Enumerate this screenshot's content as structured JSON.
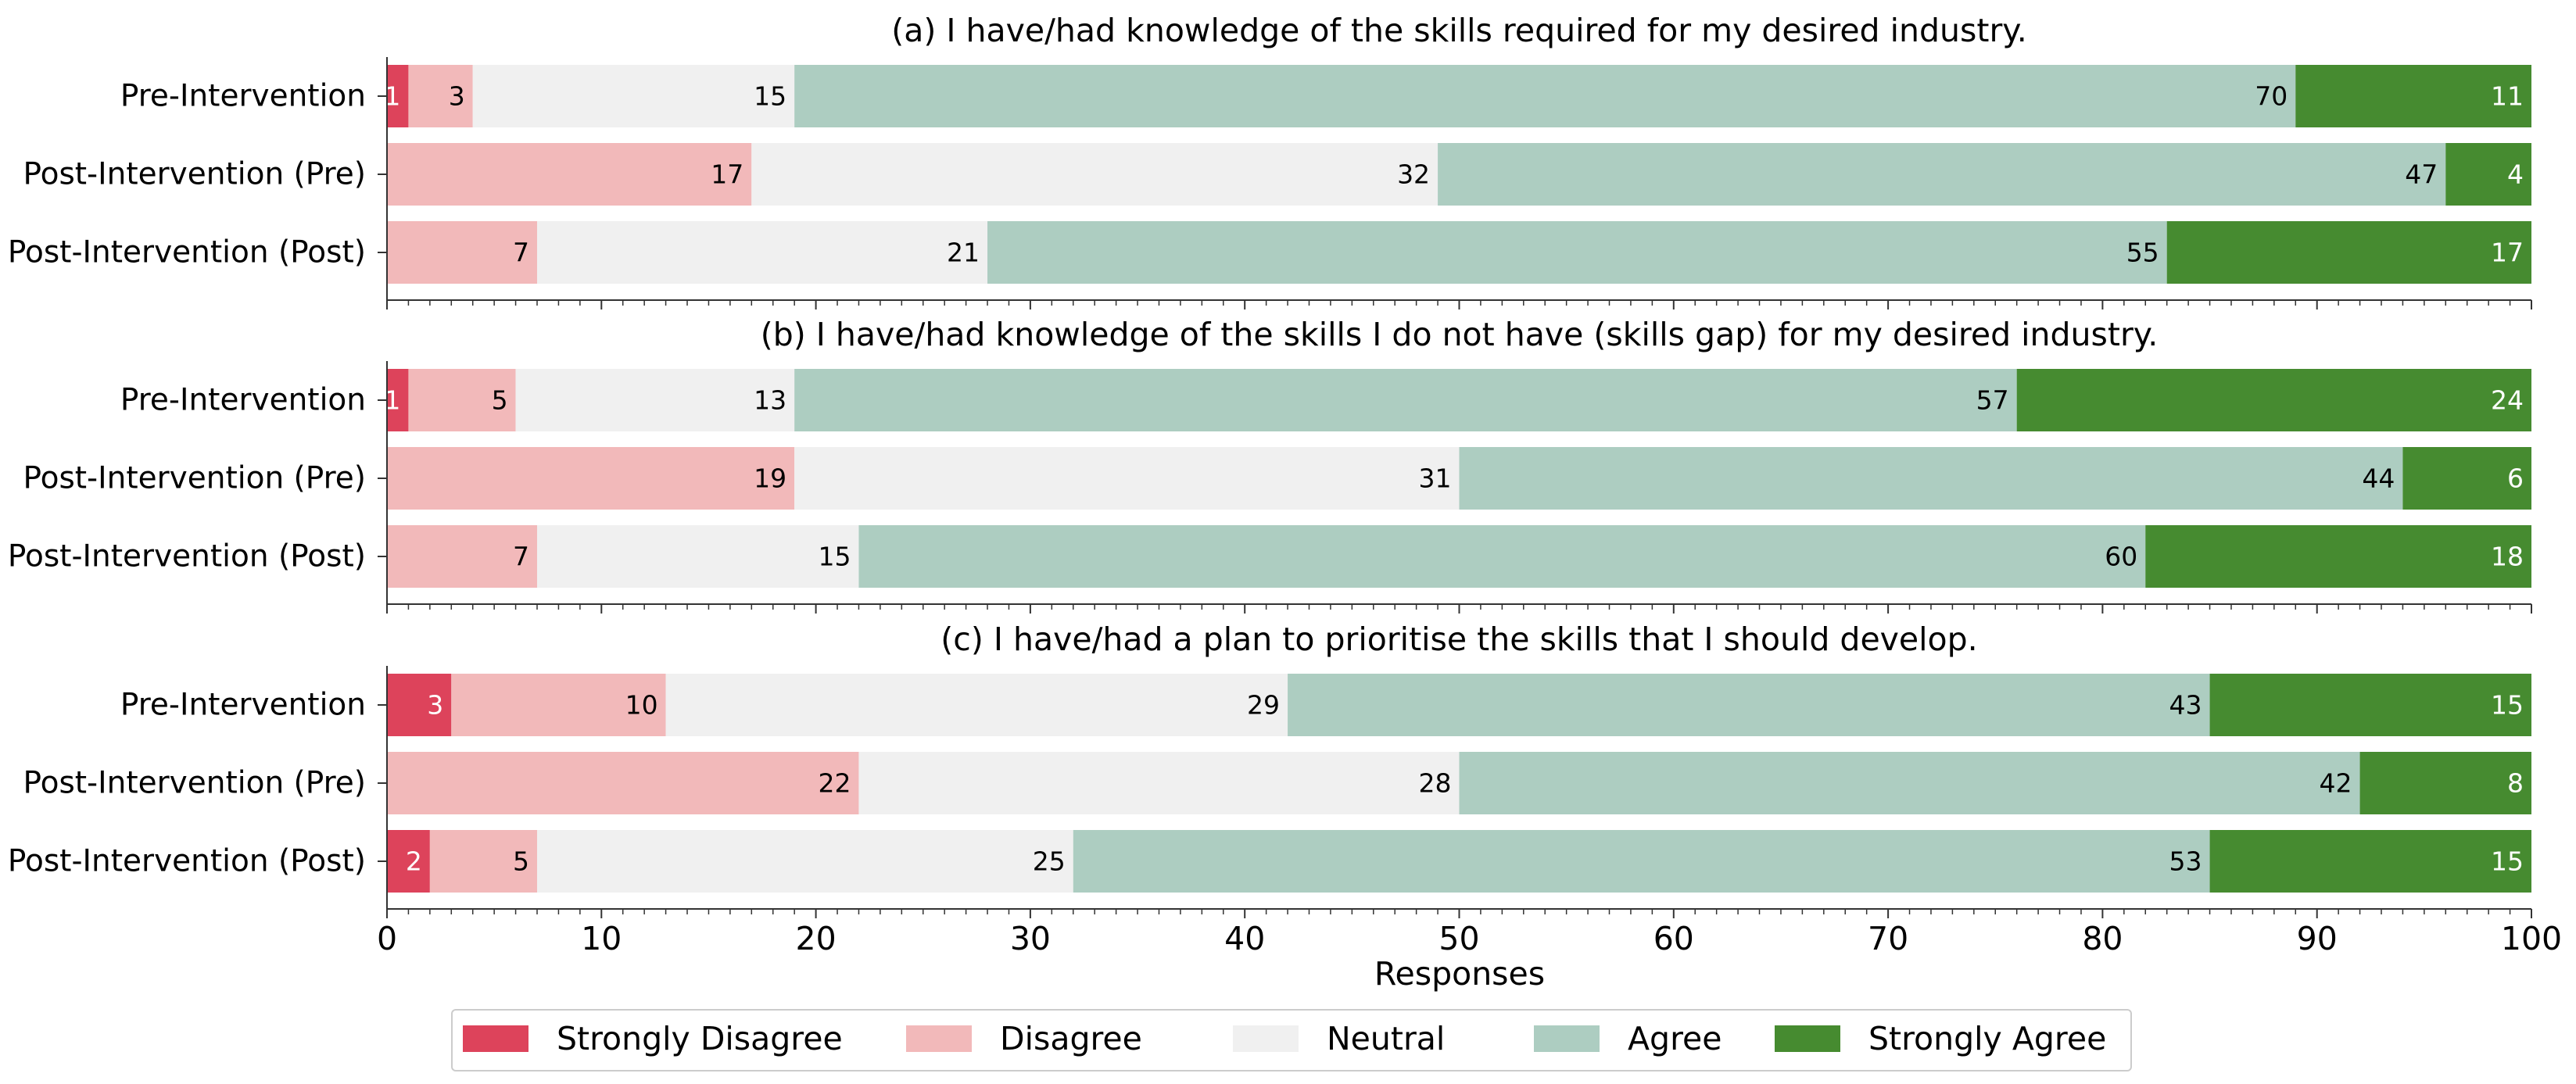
{
  "chart_data": {
    "type": "bar",
    "orientation": "horizontal",
    "stacked": true,
    "xlabel": "Responses",
    "xlim": [
      0,
      100
    ],
    "xticks": [
      0,
      10,
      20,
      30,
      40,
      50,
      60,
      70,
      80,
      90,
      100
    ],
    "grid": false,
    "legend_position": "bottom-center",
    "categories": [
      "Pre-Intervention",
      "Post-Intervention (Pre)",
      "Post-Intervention (Post)"
    ],
    "series": [
      {
        "name": "Strongly Disagree",
        "color": "#dd435b",
        "label_color": "#ffffff"
      },
      {
        "name": "Disagree",
        "color": "#f2b9ba",
        "label_color": "#000000"
      },
      {
        "name": "Neutral",
        "color": "#f0f0f0",
        "label_color": "#000000"
      },
      {
        "name": "Agree",
        "color": "#adcdc1",
        "label_color": "#000000"
      },
      {
        "name": "Strongly Agree",
        "color": "#468b30",
        "label_color": "#ffffff"
      }
    ],
    "panels": [
      {
        "title": "(a) I have/had knowledge of the skills required for my desired industry.",
        "values": [
          [
            1,
            3,
            15,
            70,
            11
          ],
          [
            0,
            17,
            32,
            47,
            4
          ],
          [
            0,
            7,
            21,
            55,
            17
          ]
        ]
      },
      {
        "title": "(b) I have/had knowledge of the skills I do not have (skills gap) for my desired industry.",
        "values": [
          [
            1,
            5,
            13,
            57,
            24
          ],
          [
            0,
            19,
            31,
            44,
            6
          ],
          [
            0,
            7,
            15,
            60,
            18
          ]
        ]
      },
      {
        "title": "(c) I have/had a plan to prioritise the skills that I should develop.",
        "values": [
          [
            3,
            10,
            29,
            43,
            15
          ],
          [
            0,
            22,
            28,
            42,
            8
          ],
          [
            2,
            5,
            25,
            53,
            15
          ]
        ]
      }
    ]
  }
}
